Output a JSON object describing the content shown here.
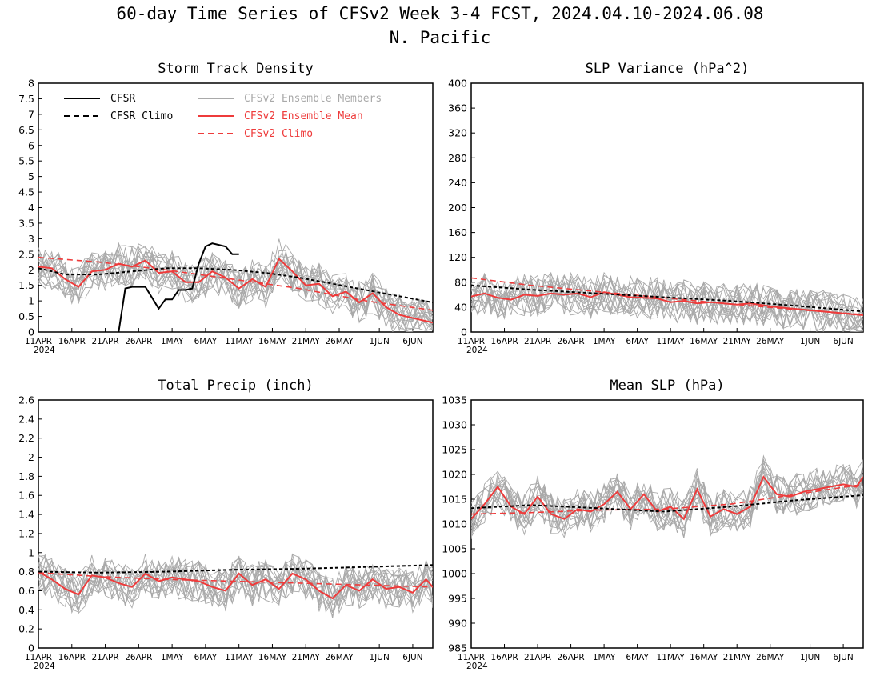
{
  "figure": {
    "title_line1": "60-day Time Series of CFSv2 Week 3-4 FCST, 2024.04.10-2024.06.08",
    "title_line2": "N. Pacific"
  },
  "legend": [
    {
      "label": "CFSR",
      "color": "#000000",
      "dashed": false
    },
    {
      "label": "CFSR Climo",
      "color": "#000000",
      "dashed": true
    },
    {
      "label": "CFSv2 Ensemble Members",
      "color": "#a9a9a9",
      "dashed": false
    },
    {
      "label": "CFSv2 Ensemble Mean",
      "color": "#ee3b3b",
      "dashed": false
    },
    {
      "label": "CFSv2 Climo",
      "color": "#ee3b3b",
      "dashed": true
    }
  ],
  "x_axis": {
    "day_range": [
      1,
      60
    ],
    "tick_labels": [
      "11APR",
      "16APR",
      "21APR",
      "26APR",
      "1MAY",
      "6MAY",
      "11MAY",
      "16MAY",
      "21MAY",
      "26MAY",
      "1JUN",
      "6JUN"
    ],
    "tick_days": [
      1,
      6,
      11,
      16,
      21,
      26,
      31,
      36,
      41,
      46,
      52,
      57
    ],
    "year_label": "2024"
  },
  "colors": {
    "cfsr": "#000000",
    "member": "#a9a9a9",
    "mean": "#ee3b3b",
    "climo_cfsv2": "#ee3b3b"
  },
  "chart_data": [
    {
      "type": "line",
      "title": "Storm Track Density",
      "ylim": [
        0,
        8
      ],
      "yticks": [
        "0",
        "0.5",
        "1",
        "1.5",
        "2",
        "2.5",
        "3",
        "3.5",
        "4",
        "4.5",
        "5",
        "5.5",
        "6",
        "6.5",
        "7",
        "7.5",
        "8"
      ],
      "series": [
        {
          "name": "CFSR",
          "x": [
            13,
            14,
            15,
            16,
            17,
            18,
            19,
            20,
            21,
            22,
            23,
            24,
            25,
            26,
            27,
            28,
            29,
            30,
            31
          ],
          "values": [
            0.0,
            1.4,
            1.45,
            1.45,
            1.45,
            1.1,
            0.75,
            1.05,
            1.05,
            1.35,
            1.35,
            1.4,
            2.2,
            2.75,
            2.85,
            2.8,
            2.75,
            2.5,
            2.5
          ]
        },
        {
          "name": "CFSR Climo",
          "x": [
            1,
            5,
            10,
            15,
            20,
            25,
            30,
            35,
            40,
            45,
            50,
            55,
            60
          ],
          "values": [
            2.05,
            1.85,
            1.85,
            1.95,
            2.05,
            2.05,
            2.0,
            1.9,
            1.75,
            1.55,
            1.35,
            1.15,
            0.95
          ]
        },
        {
          "name": "CFSv2 Climo",
          "x": [
            1,
            10,
            20,
            30,
            40,
            50,
            60
          ],
          "values": [
            2.4,
            2.25,
            2.0,
            1.7,
            1.4,
            1.0,
            0.7
          ]
        },
        {
          "name": "CFSv2 Ensemble Mean",
          "x": [
            1,
            3,
            5,
            7,
            9,
            11,
            13,
            15,
            17,
            19,
            21,
            23,
            25,
            27,
            29,
            31,
            33,
            35,
            37,
            39,
            41,
            43,
            45,
            47,
            49,
            51,
            53,
            55,
            57,
            59,
            60
          ],
          "values": [
            2.1,
            2.05,
            1.7,
            1.45,
            1.95,
            2.0,
            2.2,
            2.1,
            2.3,
            1.9,
            1.95,
            1.6,
            1.6,
            1.95,
            1.75,
            1.4,
            1.7,
            1.45,
            2.35,
            1.95,
            1.5,
            1.55,
            1.15,
            1.3,
            0.95,
            1.25,
            0.8,
            0.55,
            0.45,
            0.35,
            0.3
          ]
        }
      ]
    },
    {
      "type": "line",
      "title": "SLP Variance (hPa^2)",
      "ylim": [
        0,
        400
      ],
      "yticks": [
        "0",
        "40",
        "80",
        "120",
        "160",
        "200",
        "240",
        "280",
        "320",
        "360",
        "400"
      ],
      "series": [
        {
          "name": "CFSR Climo",
          "x": [
            1,
            10,
            20,
            30,
            40,
            50,
            60
          ],
          "values": [
            75,
            68,
            62,
            56,
            50,
            42,
            33
          ]
        },
        {
          "name": "CFSv2 Climo",
          "x": [
            1,
            10,
            20,
            30,
            40,
            50,
            60
          ],
          "values": [
            87,
            75,
            65,
            55,
            45,
            36,
            28
          ]
        },
        {
          "name": "CFSv2 Ensemble Mean",
          "x": [
            1,
            3,
            5,
            7,
            9,
            11,
            13,
            15,
            17,
            19,
            21,
            23,
            25,
            27,
            29,
            31,
            33,
            35,
            37,
            39,
            41,
            43,
            45,
            47,
            49,
            51,
            53,
            55,
            57,
            59,
            60
          ],
          "values": [
            57,
            62,
            55,
            52,
            60,
            58,
            62,
            60,
            62,
            56,
            64,
            60,
            56,
            55,
            54,
            48,
            50,
            46,
            48,
            46,
            44,
            46,
            43,
            40,
            38,
            36,
            34,
            32,
            30,
            28,
            27
          ]
        }
      ]
    },
    {
      "type": "line",
      "title": "Total Precip (inch)",
      "ylim": [
        0,
        2.6
      ],
      "yticks": [
        "0",
        "0.2",
        "0.4",
        "0.6",
        "0.8",
        "1",
        "1.2",
        "1.4",
        "1.6",
        "1.8",
        "2",
        "2.2",
        "2.4",
        "2.6"
      ],
      "series": [
        {
          "name": "CFSR Climo",
          "x": [
            1,
            10,
            20,
            30,
            40,
            50,
            60
          ],
          "values": [
            0.8,
            0.79,
            0.8,
            0.82,
            0.83,
            0.85,
            0.87
          ]
        },
        {
          "name": "CFSv2 Climo",
          "x": [
            1,
            10,
            20,
            30,
            40,
            50,
            60
          ],
          "values": [
            0.79,
            0.75,
            0.72,
            0.7,
            0.68,
            0.66,
            0.64
          ]
        },
        {
          "name": "CFSv2 Ensemble Mean",
          "x": [
            1,
            3,
            5,
            7,
            9,
            11,
            13,
            15,
            17,
            19,
            21,
            23,
            25,
            27,
            29,
            31,
            33,
            35,
            37,
            39,
            41,
            43,
            45,
            47,
            49,
            51,
            53,
            55,
            57,
            59,
            60
          ],
          "values": [
            0.8,
            0.72,
            0.62,
            0.56,
            0.76,
            0.74,
            0.68,
            0.64,
            0.78,
            0.7,
            0.74,
            0.72,
            0.7,
            0.64,
            0.6,
            0.78,
            0.66,
            0.72,
            0.62,
            0.78,
            0.72,
            0.6,
            0.52,
            0.66,
            0.6,
            0.72,
            0.62,
            0.64,
            0.58,
            0.72,
            0.64
          ]
        }
      ]
    },
    {
      "type": "line",
      "title": "Mean SLP (hPa)",
      "ylim": [
        985,
        1035
      ],
      "yticks": [
        "985",
        "990",
        "995",
        "1000",
        "1005",
        "1010",
        "1015",
        "1020",
        "1025",
        "1030",
        "1035"
      ],
      "series": [
        {
          "name": "CFSR Climo",
          "x": [
            1,
            10,
            20,
            30,
            40,
            50,
            60
          ],
          "values": [
            1013.2,
            1013.8,
            1013.2,
            1012.5,
            1013.5,
            1014.8,
            1015.8
          ]
        },
        {
          "name": "CFSv2 Climo",
          "x": [
            1,
            10,
            20,
            30,
            40,
            50,
            60
          ],
          "values": [
            1012.0,
            1012.3,
            1012.8,
            1013.0,
            1014.0,
            1016.0,
            1018.0
          ]
        },
        {
          "name": "CFSv2 Ensemble Mean",
          "x": [
            1,
            3,
            5,
            7,
            9,
            11,
            13,
            15,
            17,
            19,
            21,
            23,
            25,
            27,
            29,
            31,
            33,
            35,
            37,
            39,
            41,
            43,
            45,
            47,
            49,
            51,
            53,
            55,
            57,
            59,
            60
          ],
          "values": [
            1011.0,
            1014.0,
            1017.5,
            1013.5,
            1012.0,
            1015.5,
            1012.0,
            1011.0,
            1013.0,
            1012.5,
            1014.0,
            1016.5,
            1013.0,
            1016.0,
            1012.5,
            1013.5,
            1011.0,
            1017.0,
            1011.5,
            1013.0,
            1012.0,
            1013.5,
            1019.5,
            1016.0,
            1015.5,
            1016.5,
            1017.0,
            1017.5,
            1018.0,
            1017.5,
            1019.5
          ]
        }
      ]
    }
  ]
}
